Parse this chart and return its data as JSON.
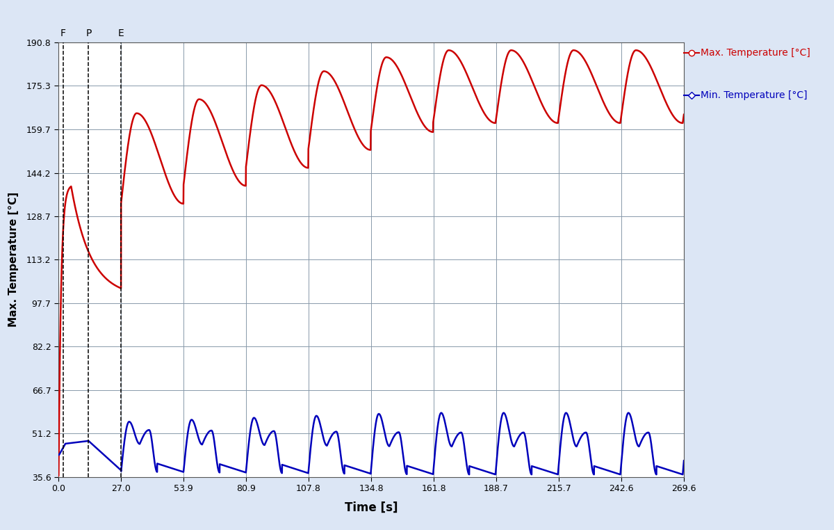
{
  "xlabel": "Time [s]",
  "ylabel": "Max. Temperature [°C]",
  "xlim": [
    0.0,
    269.6
  ],
  "ylim": [
    35.6,
    190.8
  ],
  "xticks": [
    0.0,
    27.0,
    53.9,
    80.9,
    107.8,
    134.8,
    161.8,
    188.7,
    215.7,
    242.6,
    269.6
  ],
  "yticks": [
    35.6,
    51.2,
    66.7,
    82.2,
    97.7,
    113.2,
    128.7,
    144.2,
    159.7,
    175.3,
    190.8
  ],
  "background_color": "#dce6f5",
  "plot_bg_color": "#ffffff",
  "grid_color": "#8899aa",
  "red_color": "#cc0000",
  "blue_color": "#0000bb",
  "vline_F": 2.0,
  "vline_P": 13.0,
  "vline_E": 27.0,
  "legend_max_label": "Max. Temperature [°C]",
  "legend_min_label": "Min. Temperature [°C]",
  "cycle_period": 26.9
}
